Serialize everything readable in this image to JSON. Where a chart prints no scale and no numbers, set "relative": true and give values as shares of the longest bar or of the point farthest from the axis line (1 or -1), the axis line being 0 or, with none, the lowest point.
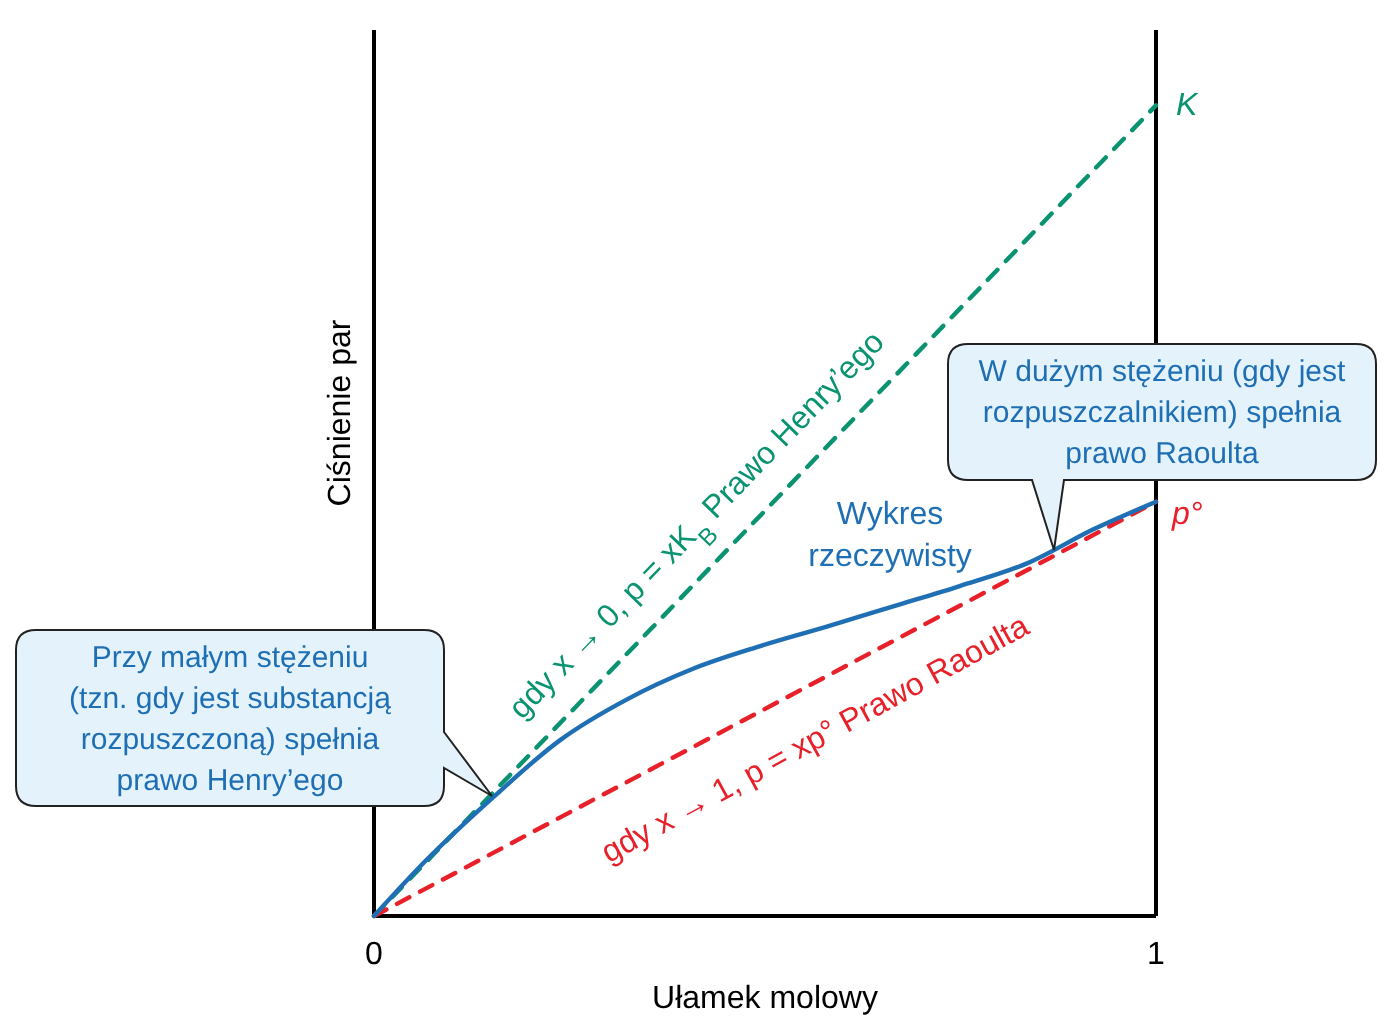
{
  "chart_data": {
    "type": "line",
    "xlabel": "Ułamek molowy",
    "ylabel": "Ciśnienie par",
    "relative": true,
    "xlim": [
      0,
      1
    ],
    "xticks": [
      0,
      1
    ],
    "series": [
      {
        "color": "#0a9370",
        "line_style": "dashed",
        "x": [
          0,
          1
        ],
        "values": [
          0,
          1
        ]
      },
      {
        "color": "#e8202a",
        "line_style": "dashed",
        "x": [
          0,
          1
        ],
        "values": [
          0,
          0.511
        ]
      },
      {
        "color": "#1f6fb5",
        "line_style": "solid",
        "x": [
          0,
          0.067,
          0.153,
          0.238,
          0.323,
          0.408,
          0.494,
          0.579,
          0.664,
          0.749,
          0.835,
          0.92,
          1
        ],
        "values": [
          0,
          0.069,
          0.147,
          0.217,
          0.267,
          0.305,
          0.333,
          0.357,
          0.382,
          0.407,
          0.435,
          0.477,
          0.511
        ]
      }
    ],
    "annotations": [
      {
        "text": "K",
        "x": 1,
        "y": 1
      },
      {
        "text": "p°",
        "x": 1,
        "y": 0.511
      },
      "gdy x → 0,  p = xK$_{B}$  Prawo Henry’ego",
      "gdy x → 1,  p = xp°  Prawo Raoulta",
      "Wykres\nrzeczywisty",
      "Przy małym stężeniu\n(tzn. gdy jest substancją\nrozpuszczoną) spełnia\nprawo Henry’ego",
      "W dużym stężeniu (gdy jest\nrozpuszczalnikiem) spełnia\nprawo Raoulta"
    ]
  }
}
